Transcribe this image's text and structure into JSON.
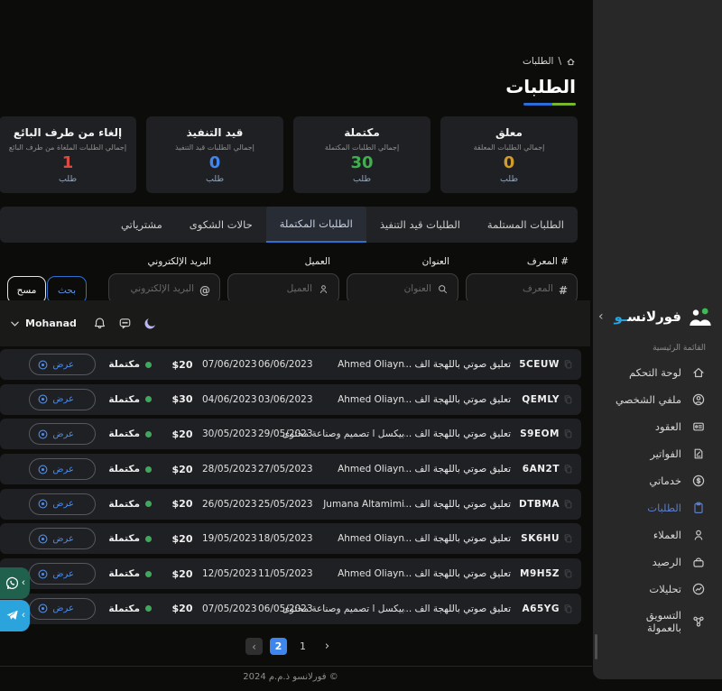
{
  "breadcrumb": {
    "separator": "\\",
    "current": "الطلبات"
  },
  "page": {
    "title": "الطلبات"
  },
  "stats": [
    {
      "title": "معلق",
      "subtitle": "إجمالي الطلبات المعلقة",
      "value": "0",
      "unit": "طلب",
      "color": "#d29b2a"
    },
    {
      "title": "مكتملة",
      "subtitle": "إجمالي الطلبات المكتملة",
      "value": "30",
      "unit": "طلب",
      "color": "#41ae4f"
    },
    {
      "title": "قيد التنفيذ",
      "subtitle": "إجمالي الطلبات قيد التنفيذ",
      "value": "0",
      "unit": "طلب",
      "color": "#4186f0"
    },
    {
      "title": "إلغاء من طرف البائع",
      "subtitle": "إجمالي الطلبات الملغاة من طرف البائع",
      "value": "1",
      "unit": "طلب",
      "color": "#db4a41"
    }
  ],
  "tabs": [
    {
      "label": "الطلبات المستلمة",
      "active": false
    },
    {
      "label": "الطلبات قيد التنفيذ",
      "active": false
    },
    {
      "label": "الطلبات المكتملة",
      "active": true
    },
    {
      "label": "حالات الشكوى",
      "active": false
    },
    {
      "label": "مشترياتي",
      "active": false
    }
  ],
  "filters": {
    "fields": [
      {
        "label": "# المعرف",
        "placeholder": "المعرف",
        "icon": "hash"
      },
      {
        "label": "العنوان",
        "placeholder": "العنوان",
        "icon": "search"
      },
      {
        "label": "العميل",
        "placeholder": "العميل",
        "icon": "user"
      },
      {
        "label": "البريد الإلكتروني",
        "placeholder": "البريد الإلكتروني",
        "icon": "at"
      }
    ],
    "search_label": "بحث",
    "clear_label": "مسح"
  },
  "topbar": {
    "username": "Mohanad"
  },
  "table": {
    "status_label": "مكتملة",
    "action_label": "عرض",
    "status_color": "#41a75c",
    "rows": [
      {
        "id": "5CEUW",
        "title": "تعليق صوتي باللهجة الف ...",
        "client": "Ahmed Oliayn",
        "date_start": "06/06/2023",
        "date_end": "07/06/2023",
        "price": "$20"
      },
      {
        "id": "QEMLY",
        "title": "تعليق صوتي باللهجة الف ...",
        "client": "Ahmed Oliayn",
        "date_start": "03/06/2023",
        "date_end": "04/06/2023",
        "price": "$30"
      },
      {
        "id": "S9EOM",
        "title": "تعليق صوتي باللهجة الف ...",
        "client": "بيكسل ا تصميم وصناعة محتوى",
        "date_start": "29/05/2023",
        "date_end": "30/05/2023",
        "price": "$20"
      },
      {
        "id": "6AN2T",
        "title": "تعليق صوتي باللهجة الف ...",
        "client": "Ahmed Oliayn",
        "date_start": "27/05/2023",
        "date_end": "28/05/2023",
        "price": "$20"
      },
      {
        "id": "DTBMA",
        "title": "تعليق صوتي باللهجة الف ...",
        "client": "Jumana Altamimi",
        "date_start": "25/05/2023",
        "date_end": "26/05/2023",
        "price": "$20"
      },
      {
        "id": "SK6HU",
        "title": "تعليق صوتي باللهجة الف ...",
        "client": "Ahmed Oliayn",
        "date_start": "18/05/2023",
        "date_end": "19/05/2023",
        "price": "$20"
      },
      {
        "id": "M9H5Z",
        "title": "تعليق صوتي باللهجة الف ...",
        "client": "Ahmed Oliayn",
        "date_start": "11/05/2023",
        "date_end": "12/05/2023",
        "price": "$20"
      },
      {
        "id": "A65YG",
        "title": "تعليق صوتي باللهجة الف ...",
        "client": "بيكسل ا تصميم وصناعة محتوى",
        "date_start": "06/05/2023",
        "date_end": "07/05/2023",
        "price": "$20"
      }
    ]
  },
  "pagination": {
    "prev": "‹",
    "active_page": "2",
    "other_page": "1",
    "next": "›",
    "active_color": "#3f86ec"
  },
  "footer": {
    "copyright": "© فورلانسو ذ.م.م 2024"
  },
  "floating_contacts": [
    {
      "icon": "whatsapp",
      "color": "#20614d",
      "chevron": "‹"
    },
    {
      "icon": "telegram",
      "color": "#2ba3dc",
      "chevron": "‹"
    }
  ],
  "sidebar": {
    "logo": {
      "text": "فورلانس",
      "accent": "ـو",
      "accent_color": "#2aa5e0",
      "mark_green": "#3dba54",
      "collapse": "›"
    },
    "section_label": "القائمة الرئيسية",
    "active_color": "#5d7dc7",
    "items": [
      {
        "label": "لوحة التحكم",
        "icon": "home",
        "active": false
      },
      {
        "label": "ملفي الشخصي",
        "icon": "user-circle",
        "active": false
      },
      {
        "label": "العقود",
        "icon": "contract",
        "active": false
      },
      {
        "label": "الفواتير",
        "icon": "invoice",
        "active": false
      },
      {
        "label": "خدماتي",
        "icon": "dollar",
        "active": false
      },
      {
        "label": "الطلبات",
        "icon": "clipboard",
        "active": true
      },
      {
        "label": "العملاء",
        "icon": "user",
        "active": false
      },
      {
        "label": "الرصيد",
        "icon": "wallet",
        "active": false
      },
      {
        "label": "تحليلات",
        "icon": "analytics",
        "active": false
      },
      {
        "label": "التسويق بالعمولة",
        "icon": "affiliate",
        "active": false
      }
    ]
  }
}
